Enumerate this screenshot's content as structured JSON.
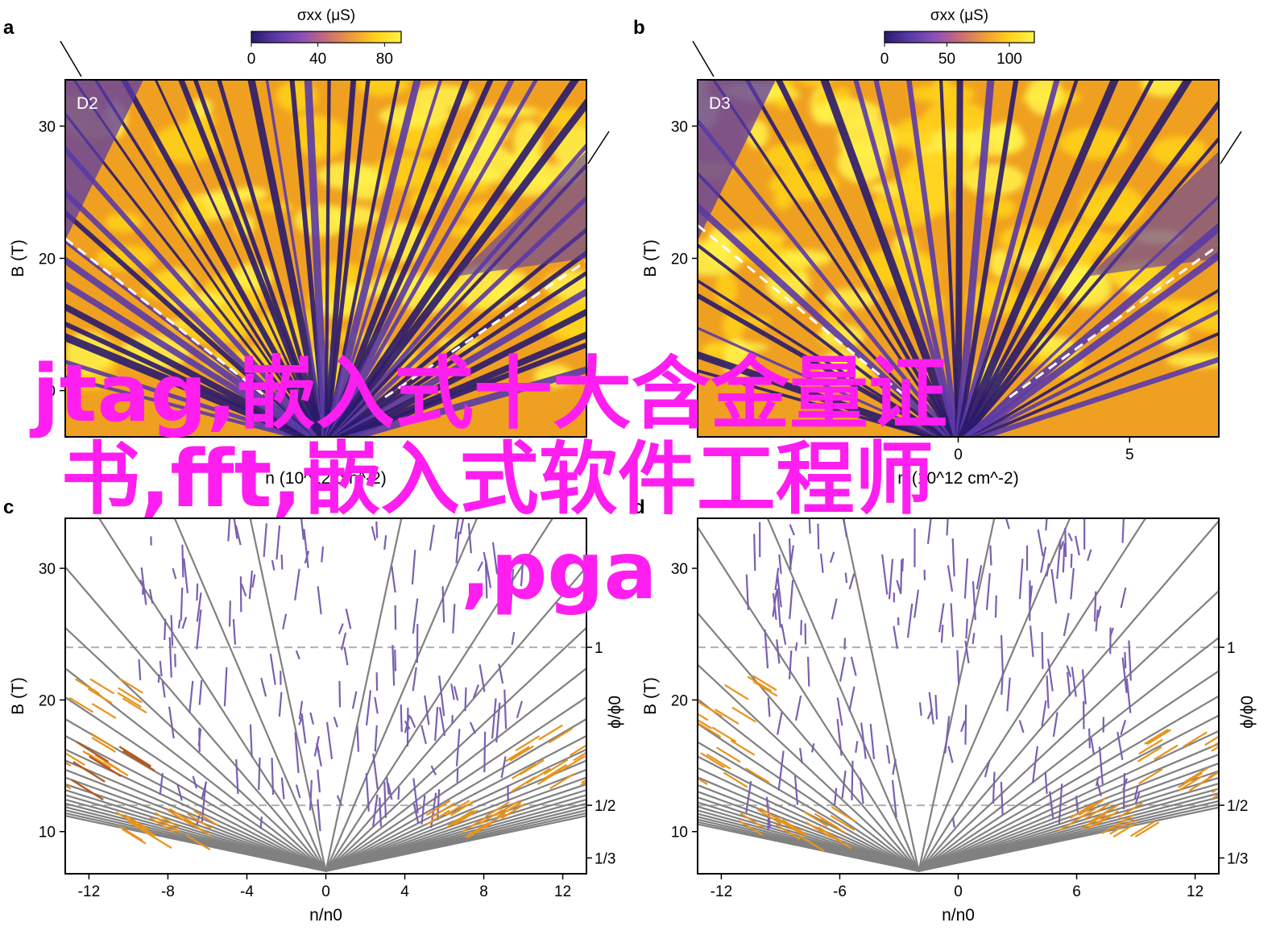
{
  "watermark": {
    "lines": [
      "jtag,嵌入式十大含金量证",
      "书,fft,嵌入式软件工程师",
      ",pga"
    ],
    "color": "#ff1ef0"
  },
  "colormap": [
    "#2a1a6e",
    "#5a3aa8",
    "#8a4fb8",
    "#c86a7a",
    "#f09a3a",
    "#ffd21a",
    "#fff24a"
  ],
  "chart_data": [
    {
      "panel": "a",
      "type": "heatmap",
      "inset_label": "D2",
      "colorbar": {
        "label": "σxx (μS)",
        "ticks": [
          "0",
          "40",
          "80"
        ],
        "range": [
          0,
          90
        ]
      },
      "xlim": [
        -13.2,
        13.2
      ],
      "ylim": [
        6.5,
        33.5
      ],
      "yticks": [
        10,
        20,
        30
      ],
      "ylabel": "B (T)",
      "xlabel": "n (10^12 cm^-2)",
      "xticks_visible": [],
      "dashed_boundary": {
        "left": [
          [
            -13.2,
            21.5
          ],
          [
            -3.0,
            9.5
          ]
        ],
        "right": [
          [
            3.0,
            9.5
          ],
          [
            13.2,
            19.8
          ]
        ]
      }
    },
    {
      "panel": "b",
      "type": "heatmap",
      "inset_label": "D3",
      "colorbar": {
        "label": "σxx (μS)",
        "ticks": [
          "0",
          "50",
          "100"
        ],
        "range": [
          0,
          120
        ]
      },
      "xlim": [
        -7.6,
        7.6
      ],
      "ylim": [
        6.5,
        33.5
      ],
      "yticks": [
        20,
        30
      ],
      "ylabel": "B (T)",
      "xlabel": "n (10^12 cm^-2)",
      "xticks_visible": [
        "0",
        "5"
      ],
      "dashed_boundary": {
        "left": [
          [
            -7.6,
            22.5
          ],
          [
            -1.5,
            9.5
          ]
        ],
        "right": [
          [
            1.5,
            9.5
          ],
          [
            7.6,
            21.0
          ]
        ]
      }
    },
    {
      "panel": "c",
      "type": "line",
      "xlim": [
        -13.2,
        13.2
      ],
      "ylim": [
        6.8,
        33.8
      ],
      "xticks": [
        -12,
        -8,
        -4,
        0,
        4,
        8,
        12
      ],
      "yticks": [
        10,
        20,
        30
      ],
      "xlabel": "n/n0",
      "ylabel": "B (T)",
      "right_axis": {
        "label": "ϕ/ϕ0",
        "ticks": [
          {
            "label": "1",
            "B": 24
          },
          {
            "label": "1/2",
            "B": 12
          },
          {
            "label": "1/3",
            "B": 8
          }
        ]
      },
      "dashed_levels": [
        24,
        12
      ],
      "fan_vertex": [
        0,
        7
      ],
      "series_colors": {
        "gray": "#808080",
        "purple": "#7b5fb0",
        "orange": "#e8931c",
        "brown": "#b25a1e"
      }
    },
    {
      "panel": "d",
      "type": "line",
      "xlim": [
        -13.2,
        13.2
      ],
      "ylim": [
        6.8,
        33.8
      ],
      "xticks": [
        -12,
        -6,
        0,
        6,
        12
      ],
      "yticks": [
        10,
        20,
        30
      ],
      "xlabel": "n/n0",
      "ylabel": "B (T)",
      "right_axis": {
        "label": "ϕ/ϕ0",
        "ticks": [
          {
            "label": "1",
            "B": 24
          },
          {
            "label": "1/2",
            "B": 12
          },
          {
            "label": "1/3",
            "B": 8
          }
        ]
      },
      "dashed_levels": [
        24,
        12
      ],
      "fan_vertex": [
        -2,
        7
      ],
      "series_colors": {
        "gray": "#808080",
        "purple": "#7b5fb0",
        "orange": "#e8931c"
      }
    }
  ]
}
